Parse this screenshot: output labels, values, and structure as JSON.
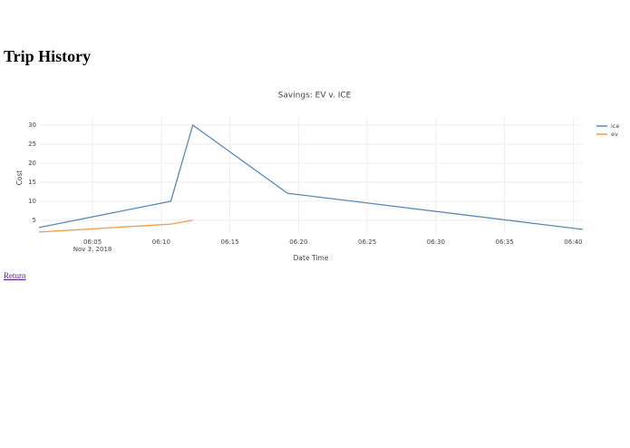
{
  "page": {
    "heading": "Trip History",
    "link": "Return"
  },
  "chart_data": {
    "type": "line",
    "title": "Savings: EV v. ICE",
    "x_label": "Date Time",
    "y_label": "Cost",
    "x_date_label": "Nov 3, 2018",
    "x": [
      "2018-11-03 06:01:06",
      "2018-11-03 06:10:42",
      "2018-11-03 06:12:18",
      "2018-11-03 06:19:12",
      "2018-11-03 06:40:42"
    ],
    "series": [
      {
        "name": "ice",
        "color": "#5b8ab8",
        "values": [
          3.1,
          10,
          30,
          12.1,
          2.6
        ]
      },
      {
        "name": "ev",
        "color": "#f09a4c",
        "values": [
          1.9,
          4.0,
          5,
          null,
          null
        ]
      }
    ],
    "xlim": [
      "2018-11-03 06:01:06",
      "2018-11-03 06:40:42"
    ],
    "xticks": [
      {
        "value": "2018-11-03 06:05:00",
        "label": "06:05"
      },
      {
        "value": "2018-11-03 06:10:00",
        "label": "06:10"
      },
      {
        "value": "2018-11-03 06:15:00",
        "label": "06:15"
      },
      {
        "value": "2018-11-03 06:20:00",
        "label": "06:20"
      },
      {
        "value": "2018-11-03 06:25:00",
        "label": "06:25"
      },
      {
        "value": "2018-11-03 06:30:00",
        "label": "06:30"
      },
      {
        "value": "2018-11-03 06:35:00",
        "label": "06:35"
      },
      {
        "value": "2018-11-03 06:40:00",
        "label": "06:40"
      }
    ],
    "ylim": [
      1.4,
      31.9
    ],
    "yticks": [
      5,
      10,
      15,
      20,
      25,
      30
    ],
    "grid": true,
    "legend": "top-right"
  }
}
